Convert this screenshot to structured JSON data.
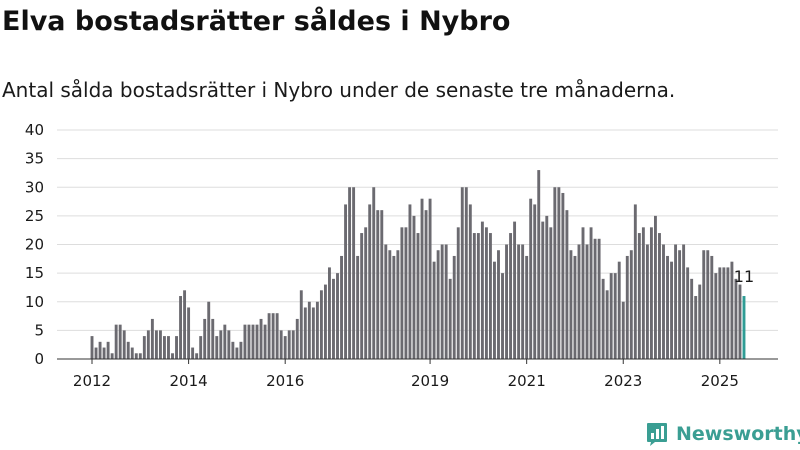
{
  "header": {
    "title": "Elva bostadsrätter såldes i Nybro",
    "subtitle": "Antal sålda bostadsrätter i Nybro under de senaste tre månaderna."
  },
  "brand": {
    "name": "Newsworthy",
    "icon": "newsworthy-logo-icon",
    "color": "#3a9e93"
  },
  "chart_data": {
    "type": "bar",
    "title": "Elva bostadsrätter såldes i Nybro",
    "subtitle": "Antal sålda bostadsrätter i Nybro under de senaste tre månaderna.",
    "xlabel": "",
    "ylabel": "",
    "ylim": [
      0,
      40
    ],
    "yticks": [
      0,
      5,
      10,
      15,
      20,
      25,
      30,
      35,
      40
    ],
    "xticks": [
      {
        "label": "2012",
        "index": 0
      },
      {
        "label": "2014",
        "index": 24
      },
      {
        "label": "2016",
        "index": 48
      },
      {
        "label": "2019",
        "index": 84
      },
      {
        "label": "2021",
        "index": 108
      },
      {
        "label": "2023",
        "index": 132
      },
      {
        "label": "2025",
        "index": 156
      }
    ],
    "grid": true,
    "bar_color": "#6b6a70",
    "highlight_color": "#2f9c95",
    "highlight_label": "11",
    "start_date": "2012-01",
    "period": "month",
    "values": [
      4,
      2,
      3,
      2,
      3,
      1,
      6,
      6,
      5,
      3,
      2,
      1,
      1,
      4,
      5,
      7,
      5,
      5,
      4,
      4,
      1,
      4,
      11,
      12,
      9,
      2,
      1,
      4,
      7,
      10,
      7,
      4,
      5,
      6,
      5,
      3,
      2,
      3,
      6,
      6,
      6,
      6,
      7,
      6,
      8,
      8,
      8,
      5,
      4,
      5,
      5,
      7,
      12,
      9,
      10,
      9,
      10,
      12,
      13,
      16,
      14,
      15,
      18,
      27,
      30,
      30,
      18,
      22,
      23,
      27,
      30,
      26,
      26,
      20,
      19,
      18,
      19,
      23,
      23,
      27,
      25,
      22,
      28,
      26,
      28,
      17,
      19,
      20,
      20,
      14,
      18,
      23,
      30,
      30,
      27,
      22,
      22,
      24,
      23,
      22,
      17,
      19,
      15,
      20,
      22,
      24,
      20,
      20,
      18,
      28,
      27,
      33,
      24,
      25,
      23,
      30,
      30,
      29,
      26,
      19,
      18,
      20,
      23,
      20,
      23,
      21,
      21,
      14,
      12,
      15,
      15,
      17,
      10,
      18,
      19,
      27,
      22,
      23,
      20,
      23,
      25,
      22,
      20,
      18,
      17,
      20,
      19,
      20,
      16,
      14,
      11,
      13,
      19,
      19,
      18,
      15,
      16,
      16,
      16,
      17,
      14,
      13,
      11
    ]
  }
}
